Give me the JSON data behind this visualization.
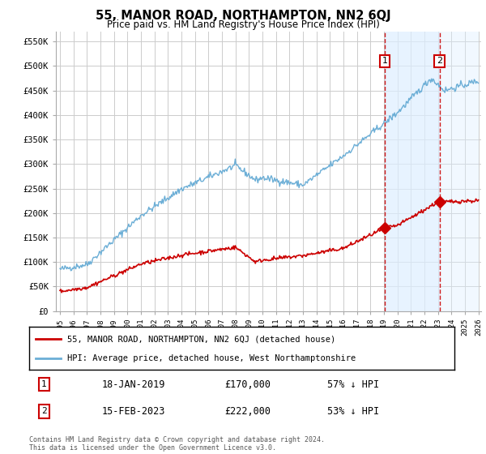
{
  "title": "55, MANOR ROAD, NORTHAMPTON, NN2 6QJ",
  "subtitle": "Price paid vs. HM Land Registry's House Price Index (HPI)",
  "ylabel_ticks": [
    "£0",
    "£50K",
    "£100K",
    "£150K",
    "£200K",
    "£250K",
    "£300K",
    "£350K",
    "£400K",
    "£450K",
    "£500K",
    "£550K"
  ],
  "ytick_values": [
    0,
    50000,
    100000,
    150000,
    200000,
    250000,
    300000,
    350000,
    400000,
    450000,
    500000,
    550000
  ],
  "ylim": [
    0,
    570000
  ],
  "xmin": 1995,
  "xmax": 2026,
  "hpi_color": "#6baed6",
  "price_color": "#cc0000",
  "marker1_x": 2019.05,
  "marker2_x": 2023.12,
  "marker1_price": 170000,
  "marker2_price": 222000,
  "shade_start": 2019.05,
  "shade_end": 2023.12,
  "legend_label1": "55, MANOR ROAD, NORTHAMPTON, NN2 6QJ (detached house)",
  "legend_label2": "HPI: Average price, detached house, West Northamptonshire",
  "annotation1_date": "18-JAN-2019",
  "annotation1_price": "£170,000",
  "annotation1_pct": "57% ↓ HPI",
  "annotation2_date": "15-FEB-2023",
  "annotation2_price": "£222,000",
  "annotation2_pct": "53% ↓ HPI",
  "footer": "Contains HM Land Registry data © Crown copyright and database right 2024.\nThis data is licensed under the Open Government Licence v3.0.",
  "bg_color": "#ffffff",
  "grid_color": "#cccccc"
}
